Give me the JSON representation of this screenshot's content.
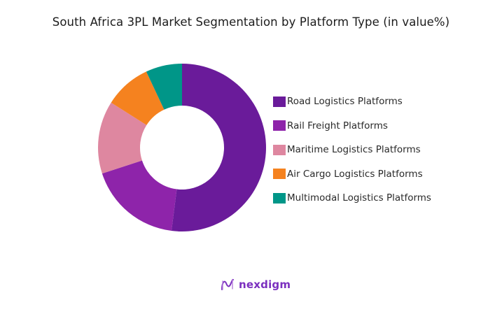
{
  "title": "South Africa 3PL Market Segmentation by Platform Type (in value%)",
  "brand": {
    "logo_text": "nexdigm",
    "logo_icon": "nexdigm-wave-icon",
    "color": "#7B2FBF"
  },
  "chart_data": {
    "type": "pie",
    "variant": "donut",
    "title": "South Africa 3PL Market Segmentation by Platform Type (in value%)",
    "categories": [
      "Road Logistics Platforms",
      "Rail Freight Platforms",
      "Maritime Logistics Platforms",
      "Air Cargo Logistics Platforms",
      "Multimodal Logistics Platforms"
    ],
    "values": [
      52,
      18,
      14,
      9,
      7
    ],
    "colors": [
      "#6A1B9A",
      "#8E24AA",
      "#DE87A0",
      "#F5821F",
      "#009688"
    ],
    "unit": "%",
    "start_angle": "12 o'clock",
    "direction": "clockwise",
    "inner_radius_ratio": 0.5,
    "data_labels": false,
    "legend_position": "right"
  },
  "legend": {
    "items": [
      {
        "label": "Road Logistics Platforms",
        "color": "#6A1B9A"
      },
      {
        "label": "Rail Freight Platforms",
        "color": "#8E24AA"
      },
      {
        "label": "Maritime Logistics Platforms",
        "color": "#DE87A0"
      },
      {
        "label": "Air Cargo Logistics Platforms",
        "color": "#F5821F"
      },
      {
        "label": "Multimodal Logistics Platforms",
        "color": "#009688"
      }
    ]
  }
}
